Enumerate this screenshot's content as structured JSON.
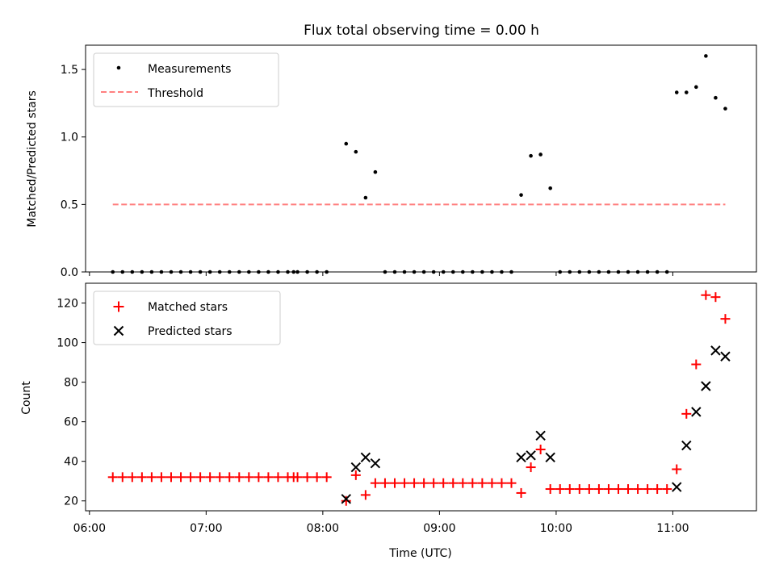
{
  "figure": {
    "title": "Flux total observing time = 0.00 h"
  },
  "chart_data": [
    {
      "type": "scatter",
      "title": "Flux total observing time = 0.00 h",
      "xlabel": "",
      "ylabel": "Matched/Predicted stars",
      "x_range": [
        "05:58",
        "11:43"
      ],
      "ylim": [
        0,
        1.68
      ],
      "yticks": [
        0,
        0.5,
        1,
        1.5
      ],
      "ytick_labels": [
        "0.0",
        "0.5",
        "1.0",
        "1.5"
      ],
      "x_tick_labels_shown": false,
      "grid": false,
      "legend_position": "top-left",
      "series": [
        {
          "name": "Measurements",
          "marker": "dot",
          "color": "#000000",
          "points": [
            [
              "06:12",
              0
            ],
            [
              "06:17",
              0
            ],
            [
              "06:22",
              0
            ],
            [
              "06:27",
              0
            ],
            [
              "06:32",
              0
            ],
            [
              "06:37",
              0
            ],
            [
              "06:42",
              0
            ],
            [
              "06:47",
              0
            ],
            [
              "06:52",
              0
            ],
            [
              "06:57",
              0
            ],
            [
              "07:02",
              0
            ],
            [
              "07:07",
              0
            ],
            [
              "07:12",
              0
            ],
            [
              "07:17",
              0
            ],
            [
              "07:22",
              0
            ],
            [
              "07:27",
              0
            ],
            [
              "07:32",
              0
            ],
            [
              "07:37",
              0
            ],
            [
              "07:42",
              0
            ],
            [
              "07:45",
              0
            ],
            [
              "07:47",
              0
            ],
            [
              "07:52",
              0
            ],
            [
              "07:57",
              0
            ],
            [
              "08:02",
              0
            ],
            [
              "08:12",
              0.95
            ],
            [
              "08:17",
              0.89
            ],
            [
              "08:22",
              0.55
            ],
            [
              "08:27",
              0.74
            ],
            [
              "08:32",
              0
            ],
            [
              "08:37",
              0
            ],
            [
              "08:42",
              0
            ],
            [
              "08:47",
              0
            ],
            [
              "08:52",
              0
            ],
            [
              "08:57",
              0
            ],
            [
              "09:02",
              0
            ],
            [
              "09:07",
              0
            ],
            [
              "09:12",
              0
            ],
            [
              "09:17",
              0
            ],
            [
              "09:22",
              0
            ],
            [
              "09:27",
              0
            ],
            [
              "09:32",
              0
            ],
            [
              "09:37",
              0
            ],
            [
              "09:42",
              0.57
            ],
            [
              "09:47",
              0.86
            ],
            [
              "09:52",
              0.87
            ],
            [
              "09:57",
              0.62
            ],
            [
              "10:02",
              0
            ],
            [
              "10:07",
              0
            ],
            [
              "10:12",
              0
            ],
            [
              "10:17",
              0
            ],
            [
              "10:22",
              0
            ],
            [
              "10:27",
              0
            ],
            [
              "10:32",
              0
            ],
            [
              "10:37",
              0
            ],
            [
              "10:42",
              0
            ],
            [
              "10:47",
              0
            ],
            [
              "10:52",
              0
            ],
            [
              "10:57",
              0
            ],
            [
              "11:02",
              1.33
            ],
            [
              "11:07",
              1.33
            ],
            [
              "11:12",
              1.37
            ],
            [
              "11:17",
              1.6
            ],
            [
              "11:22",
              1.29
            ],
            [
              "11:27",
              1.21
            ]
          ]
        },
        {
          "name": "Threshold",
          "marker": "dashed-line",
          "color": "#ff7f7f",
          "points": [
            [
              "06:12",
              0.5
            ],
            [
              "11:27",
              0.5
            ]
          ]
        }
      ]
    },
    {
      "type": "scatter",
      "title": "",
      "xlabel": "Time (UTC)",
      "ylabel": "Count",
      "x_range": [
        "05:58",
        "11:43"
      ],
      "xticks": [
        "06:00",
        "07:00",
        "08:00",
        "09:00",
        "10:00",
        "11:00"
      ],
      "xtick_labels": [
        "06:00",
        "07:00",
        "08:00",
        "09:00",
        "10:00",
        "11:00"
      ],
      "ylim": [
        15,
        130
      ],
      "yticks": [
        20,
        40,
        60,
        80,
        100,
        120
      ],
      "ytick_labels": [
        "20",
        "40",
        "60",
        "80",
        "100",
        "120"
      ],
      "grid": false,
      "legend_position": "top-left",
      "series": [
        {
          "name": "Matched stars",
          "marker": "plus",
          "color": "#ff0000",
          "points": [
            [
              "06:12",
              32
            ],
            [
              "06:17",
              32
            ],
            [
              "06:22",
              32
            ],
            [
              "06:27",
              32
            ],
            [
              "06:32",
              32
            ],
            [
              "06:37",
              32
            ],
            [
              "06:42",
              32
            ],
            [
              "06:47",
              32
            ],
            [
              "06:52",
              32
            ],
            [
              "06:57",
              32
            ],
            [
              "07:02",
              32
            ],
            [
              "07:07",
              32
            ],
            [
              "07:12",
              32
            ],
            [
              "07:17",
              32
            ],
            [
              "07:22",
              32
            ],
            [
              "07:27",
              32
            ],
            [
              "07:32",
              32
            ],
            [
              "07:37",
              32
            ],
            [
              "07:42",
              32
            ],
            [
              "07:45",
              32
            ],
            [
              "07:47",
              32
            ],
            [
              "07:52",
              32
            ],
            [
              "07:57",
              32
            ],
            [
              "08:02",
              32
            ],
            [
              "08:12",
              20
            ],
            [
              "08:17",
              33
            ],
            [
              "08:22",
              23
            ],
            [
              "08:27",
              29
            ],
            [
              "08:32",
              29
            ],
            [
              "08:37",
              29
            ],
            [
              "08:42",
              29
            ],
            [
              "08:47",
              29
            ],
            [
              "08:52",
              29
            ],
            [
              "08:57",
              29
            ],
            [
              "09:02",
              29
            ],
            [
              "09:07",
              29
            ],
            [
              "09:12",
              29
            ],
            [
              "09:17",
              29
            ],
            [
              "09:22",
              29
            ],
            [
              "09:27",
              29
            ],
            [
              "09:32",
              29
            ],
            [
              "09:37",
              29
            ],
            [
              "09:42",
              24
            ],
            [
              "09:47",
              37
            ],
            [
              "09:52",
              46
            ],
            [
              "09:57",
              26
            ],
            [
              "10:02",
              26
            ],
            [
              "10:07",
              26
            ],
            [
              "10:12",
              26
            ],
            [
              "10:17",
              26
            ],
            [
              "10:22",
              26
            ],
            [
              "10:27",
              26
            ],
            [
              "10:32",
              26
            ],
            [
              "10:37",
              26
            ],
            [
              "10:42",
              26
            ],
            [
              "10:47",
              26
            ],
            [
              "10:52",
              26
            ],
            [
              "10:57",
              26
            ],
            [
              "11:02",
              36
            ],
            [
              "11:07",
              64
            ],
            [
              "11:12",
              89
            ],
            [
              "11:17",
              124
            ],
            [
              "11:22",
              123
            ],
            [
              "11:27",
              112
            ]
          ]
        },
        {
          "name": "Predicted stars",
          "marker": "x",
          "color": "#000000",
          "points": [
            [
              "08:12",
              21
            ],
            [
              "08:17",
              37
            ],
            [
              "08:22",
              42
            ],
            [
              "08:27",
              39
            ],
            [
              "09:42",
              42
            ],
            [
              "09:47",
              43
            ],
            [
              "09:52",
              53
            ],
            [
              "09:57",
              42
            ],
            [
              "11:02",
              27
            ],
            [
              "11:07",
              48
            ],
            [
              "11:12",
              65
            ],
            [
              "11:17",
              78
            ],
            [
              "11:22",
              96
            ],
            [
              "11:27",
              93
            ]
          ]
        }
      ]
    }
  ]
}
